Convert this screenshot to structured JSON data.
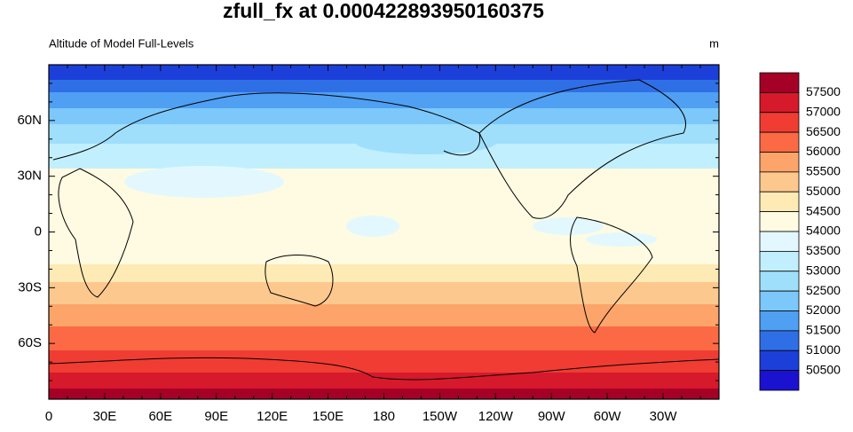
{
  "title": "zfull_fx at 0.000422893950160375",
  "left_string": "Altitude of Model Full-Levels",
  "right_string": "m",
  "x_tick_labels": [
    "0",
    "30E",
    "60E",
    "90E",
    "120E",
    "150E",
    "180",
    "150W",
    "120W",
    "90W",
    "60W",
    "30W"
  ],
  "y_tick_labels": [
    "60N",
    "30N",
    "0",
    "30S",
    "60S"
  ],
  "colorbar": {
    "labels": [
      "57500",
      "57000",
      "56500",
      "56000",
      "55500",
      "55000",
      "54500",
      "54000",
      "53500",
      "53000",
      "52500",
      "52000",
      "51500",
      "51000",
      "50500"
    ],
    "colors": [
      "#a50026",
      "#d7192c",
      "#f03c32",
      "#fb6a45",
      "#fca46a",
      "#fdc88e",
      "#feeab4",
      "#fefbe2",
      "#e3f8fe",
      "#c2effd",
      "#9fdffc",
      "#7cc8fa",
      "#4f9ff3",
      "#2f6fe6",
      "#1d3fd9",
      "#1a12d0"
    ]
  }
}
